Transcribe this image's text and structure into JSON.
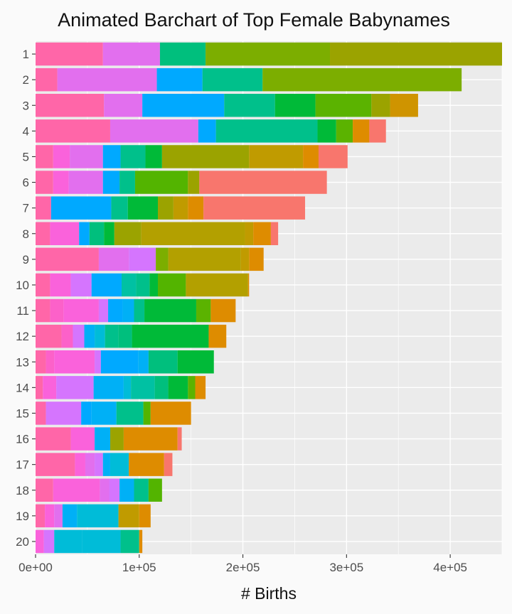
{
  "chart_data": {
    "type": "bar",
    "orientation": "horizontal",
    "stacked": true,
    "title": "Animated Barchart of Top Female Babynames",
    "xlabel": "# Births",
    "ylabel": "",
    "xlim": [
      0,
      450000
    ],
    "xticks": [
      0,
      100000,
      200000,
      300000,
      400000
    ],
    "xtick_labels": [
      "0e+00",
      "1e+05",
      "2e+05",
      "3e+05",
      "4e+05"
    ],
    "categories": [
      "1",
      "2",
      "3",
      "4",
      "5",
      "6",
      "7",
      "8",
      "9",
      "10",
      "11",
      "12",
      "13",
      "14",
      "15",
      "16",
      "17",
      "18",
      "19",
      "20"
    ],
    "grid": true,
    "legend": "none",
    "colors": {
      "background": "#fafafa",
      "panel": "#ebebeb",
      "gridline": "#ffffff"
    },
    "segments": [
      [
        [
          0,
          65000,
          "#ff66a8"
        ],
        [
          65000,
          120000,
          "#e26fee"
        ],
        [
          120000,
          164000,
          "#00bf7d"
        ],
        [
          164000,
          284000,
          "#7cae00"
        ],
        [
          284000,
          450000,
          "#9ba300"
        ]
      ],
      [
        [
          0,
          21000,
          "#ff66a8"
        ],
        [
          21000,
          117000,
          "#e26fee"
        ],
        [
          117000,
          161000,
          "#00a9ff"
        ],
        [
          161000,
          219000,
          "#00c08b"
        ],
        [
          219000,
          411000,
          "#7cae00"
        ]
      ],
      [
        [
          0,
          66000,
          "#ff66a8"
        ],
        [
          66000,
          103000,
          "#e26fee"
        ],
        [
          103000,
          182000,
          "#00a9ff"
        ],
        [
          182000,
          231000,
          "#00c08b"
        ],
        [
          231000,
          270000,
          "#00ba38"
        ],
        [
          270000,
          324000,
          "#5bb300"
        ],
        [
          324000,
          342000,
          "#9ba300"
        ],
        [
          342000,
          369000,
          "#cf9400"
        ]
      ],
      [
        [
          0,
          72000,
          "#ff66a8"
        ],
        [
          72000,
          157000,
          "#e26fee"
        ],
        [
          157000,
          174000,
          "#00a9ff"
        ],
        [
          174000,
          272000,
          "#00c08b"
        ],
        [
          272000,
          290000,
          "#00ba38"
        ],
        [
          290000,
          306000,
          "#5bb300"
        ],
        [
          306000,
          322000,
          "#de8c00"
        ],
        [
          322000,
          338000,
          "#f8766d"
        ]
      ],
      [
        [
          0,
          17000,
          "#ff66a8"
        ],
        [
          17000,
          33000,
          "#fa62db"
        ],
        [
          33000,
          65000,
          "#e26fee"
        ],
        [
          65000,
          82000,
          "#00a9ff"
        ],
        [
          82000,
          106000,
          "#00c08b"
        ],
        [
          106000,
          122000,
          "#00ba38"
        ],
        [
          122000,
          206000,
          "#9ba300"
        ],
        [
          206000,
          258000,
          "#c09b00"
        ],
        [
          258000,
          273000,
          "#de8c00"
        ],
        [
          273000,
          301000,
          "#f8766d"
        ]
      ],
      [
        [
          0,
          17000,
          "#ff66a8"
        ],
        [
          17000,
          32000,
          "#fa62db"
        ],
        [
          32000,
          65000,
          "#e26fee"
        ],
        [
          65000,
          81000,
          "#00a9ff"
        ],
        [
          81000,
          96000,
          "#00c08b"
        ],
        [
          96000,
          147000,
          "#53b400"
        ],
        [
          147000,
          158000,
          "#9ba300"
        ],
        [
          158000,
          281000,
          "#f8766d"
        ]
      ],
      [
        [
          0,
          15000,
          "#ff66a8"
        ],
        [
          15000,
          73000,
          "#00a9ff"
        ],
        [
          73000,
          89000,
          "#00c08b"
        ],
        [
          89000,
          118000,
          "#00ba38"
        ],
        [
          118000,
          133000,
          "#9ba300"
        ],
        [
          133000,
          147000,
          "#c09b00"
        ],
        [
          147000,
          162000,
          "#de8c00"
        ],
        [
          162000,
          260000,
          "#f8766d"
        ]
      ],
      [
        [
          0,
          14000,
          "#ff66a8"
        ],
        [
          14000,
          42000,
          "#fa62db"
        ],
        [
          42000,
          52000,
          "#00a9ff"
        ],
        [
          52000,
          66000,
          "#00bf7d"
        ],
        [
          66000,
          76000,
          "#00ba38"
        ],
        [
          76000,
          102000,
          "#9ba300"
        ],
        [
          102000,
          202000,
          "#b3a000"
        ],
        [
          202000,
          210000,
          "#c09b00"
        ],
        [
          210000,
          227000,
          "#de8c00"
        ],
        [
          227000,
          234000,
          "#f8766d"
        ]
      ],
      [
        [
          0,
          61000,
          "#ff66a8"
        ],
        [
          61000,
          90000,
          "#e26fee"
        ],
        [
          90000,
          116000,
          "#d575fe"
        ],
        [
          116000,
          128000,
          "#7cae00"
        ],
        [
          128000,
          198000,
          "#b3a000"
        ],
        [
          198000,
          206000,
          "#c09b00"
        ],
        [
          206000,
          220000,
          "#de8c00"
        ]
      ],
      [
        [
          0,
          14000,
          "#ff66a8"
        ],
        [
          14000,
          34000,
          "#fa62db"
        ],
        [
          34000,
          54000,
          "#d575fe"
        ],
        [
          54000,
          83000,
          "#00a9ff"
        ],
        [
          83000,
          97000,
          "#00c1a3"
        ],
        [
          97000,
          110000,
          "#00c08b"
        ],
        [
          110000,
          118000,
          "#00ba38"
        ],
        [
          118000,
          145000,
          "#53b400"
        ],
        [
          145000,
          205000,
          "#b3a000"
        ],
        [
          205000,
          206000,
          "#de8c00"
        ]
      ],
      [
        [
          0,
          14000,
          "#ff66a8"
        ],
        [
          14000,
          27000,
          "#fc61c9"
        ],
        [
          27000,
          61000,
          "#fa62db"
        ],
        [
          61000,
          70000,
          "#d575fe"
        ],
        [
          70000,
          84000,
          "#00a9ff"
        ],
        [
          84000,
          95000,
          "#00b0f6"
        ],
        [
          95000,
          105000,
          "#00c08b"
        ],
        [
          105000,
          155000,
          "#00ba38"
        ],
        [
          155000,
          169000,
          "#5bb300"
        ],
        [
          169000,
          193000,
          "#de8c00"
        ]
      ],
      [
        [
          0,
          25000,
          "#ff66a8"
        ],
        [
          25000,
          36000,
          "#fc61c9"
        ],
        [
          36000,
          47000,
          "#d575fe"
        ],
        [
          47000,
          57000,
          "#00b0f6"
        ],
        [
          57000,
          67000,
          "#00bcd8"
        ],
        [
          67000,
          80000,
          "#00c08b"
        ],
        [
          80000,
          93000,
          "#00bf7d"
        ],
        [
          93000,
          167000,
          "#00ba38"
        ],
        [
          167000,
          184000,
          "#de8c00"
        ]
      ],
      [
        [
          0,
          10000,
          "#ff66a8"
        ],
        [
          10000,
          18000,
          "#fc61c9"
        ],
        [
          18000,
          57000,
          "#fa62db"
        ],
        [
          57000,
          63000,
          "#d575fe"
        ],
        [
          63000,
          99000,
          "#00a9ff"
        ],
        [
          99000,
          109000,
          "#00b0f6"
        ],
        [
          109000,
          137000,
          "#00bf7d"
        ],
        [
          137000,
          172000,
          "#00ba38"
        ]
      ],
      [
        [
          0,
          7000,
          "#ff66a8"
        ],
        [
          7000,
          20000,
          "#fa62db"
        ],
        [
          20000,
          56000,
          "#d575fe"
        ],
        [
          56000,
          85000,
          "#00b0f6"
        ],
        [
          85000,
          92000,
          "#00bcd8"
        ],
        [
          92000,
          115000,
          "#00c1a3"
        ],
        [
          115000,
          128000,
          "#00bf7d"
        ],
        [
          128000,
          147000,
          "#00ba38"
        ],
        [
          147000,
          154000,
          "#5bb300"
        ],
        [
          154000,
          164000,
          "#de8c00"
        ]
      ],
      [
        [
          0,
          10000,
          "#ff66a8"
        ],
        [
          10000,
          44000,
          "#d575fe"
        ],
        [
          44000,
          54000,
          "#00a9ff"
        ],
        [
          54000,
          78000,
          "#00b0f6"
        ],
        [
          78000,
          104000,
          "#00c08b"
        ],
        [
          104000,
          111000,
          "#53b400"
        ],
        [
          111000,
          150000,
          "#de8c00"
        ]
      ],
      [
        [
          0,
          34000,
          "#ff66a8"
        ],
        [
          34000,
          57000,
          "#fa62db"
        ],
        [
          57000,
          72000,
          "#00b0f6"
        ],
        [
          72000,
          85000,
          "#9ba300"
        ],
        [
          85000,
          137000,
          "#de8c00"
        ],
        [
          137000,
          141000,
          "#f8766d"
        ]
      ],
      [
        [
          0,
          38000,
          "#ff66a8"
        ],
        [
          38000,
          48000,
          "#fa62db"
        ],
        [
          48000,
          57000,
          "#e26fee"
        ],
        [
          57000,
          65000,
          "#d575fe"
        ],
        [
          65000,
          72000,
          "#00b0f6"
        ],
        [
          72000,
          90000,
          "#00bcd8"
        ],
        [
          90000,
          124000,
          "#de8c00"
        ],
        [
          124000,
          132000,
          "#f8766d"
        ]
      ],
      [
        [
          0,
          17000,
          "#ff66a8"
        ],
        [
          17000,
          62000,
          "#fa62db"
        ],
        [
          62000,
          71000,
          "#e26fee"
        ],
        [
          71000,
          81000,
          "#d575fe"
        ],
        [
          81000,
          95000,
          "#00b0f6"
        ],
        [
          95000,
          109000,
          "#00c08b"
        ],
        [
          109000,
          122000,
          "#53b400"
        ]
      ],
      [
        [
          0,
          9000,
          "#ff66a8"
        ],
        [
          9000,
          18000,
          "#fa62db"
        ],
        [
          18000,
          26000,
          "#e26fee"
        ],
        [
          26000,
          40000,
          "#00b0f6"
        ],
        [
          40000,
          80000,
          "#00bcd8"
        ],
        [
          80000,
          100000,
          "#c09b00"
        ],
        [
          100000,
          111000,
          "#de8c00"
        ]
      ],
      [
        [
          0,
          8000,
          "#fa62db"
        ],
        [
          8000,
          18000,
          "#d575fe"
        ],
        [
          18000,
          45000,
          "#00bcd8"
        ],
        [
          45000,
          82000,
          "#00bcd8"
        ],
        [
          82000,
          100000,
          "#00c08b"
        ],
        [
          100000,
          103000,
          "#de8c00"
        ]
      ]
    ]
  }
}
